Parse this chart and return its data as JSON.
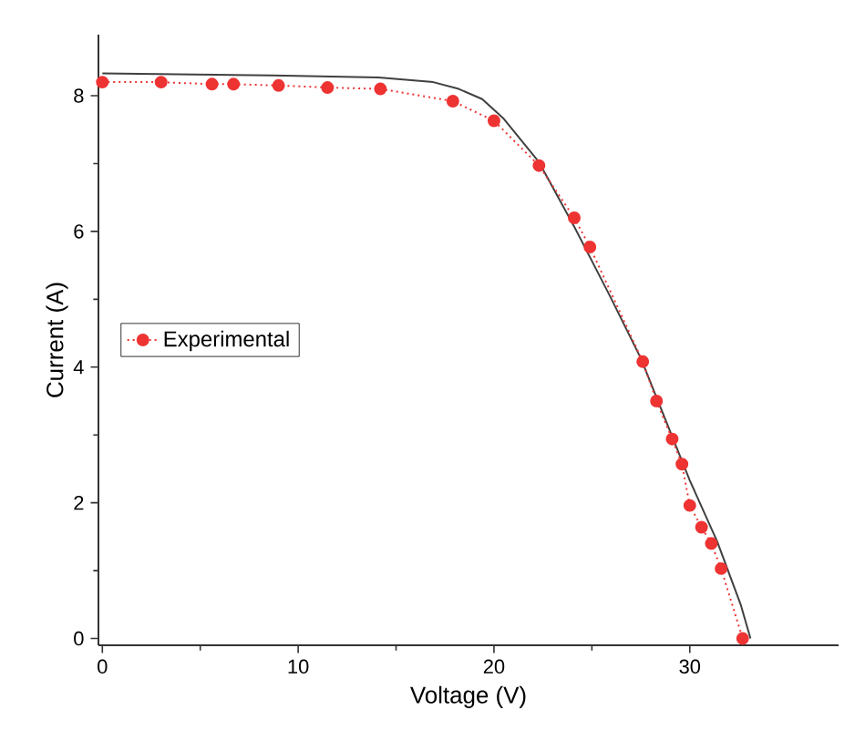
{
  "chart_data": {
    "type": "line",
    "xlabel": "Voltage (V)",
    "ylabel": "Current (A)",
    "xlim": [
      -0.2,
      37.6
    ],
    "ylim": [
      -0.1,
      8.9
    ],
    "xticks": [
      0,
      10,
      20,
      30
    ],
    "yticks": [
      0,
      2,
      4,
      6,
      8
    ],
    "grid": false,
    "legend": "left",
    "series": [
      {
        "color": "#404040",
        "line_style": "solid",
        "marker": "none",
        "x": [
          0,
          8.7,
          14.1,
          16.9,
          18.2,
          19.4,
          20.5,
          22.3,
          24.1,
          25.9,
          27.5,
          30.0,
          31.4,
          32.6,
          33.1
        ],
        "values": [
          8.33,
          8.3,
          8.27,
          8.2,
          8.1,
          7.95,
          7.66,
          7.02,
          6.07,
          5.06,
          4.13,
          2.33,
          1.43,
          0.5,
          0
        ]
      },
      {
        "name": "Experimental",
        "color": "#ee3333",
        "line_style": "dotted",
        "marker": "circle",
        "x": [
          0,
          3,
          5.6,
          6.7,
          9.0,
          11.5,
          14.2,
          17.9,
          20.0,
          22.3,
          24.1,
          24.9,
          27.6,
          28.3,
          29.1,
          29.6,
          30.0,
          30.6,
          31.1,
          31.6,
          32.7
        ],
        "values": [
          8.2,
          8.2,
          8.17,
          8.17,
          8.15,
          8.12,
          8.1,
          7.92,
          7.63,
          6.97,
          6.2,
          5.77,
          4.08,
          3.5,
          2.94,
          2.57,
          1.96,
          1.64,
          1.4,
          1.03,
          0
        ]
      }
    ]
  }
}
